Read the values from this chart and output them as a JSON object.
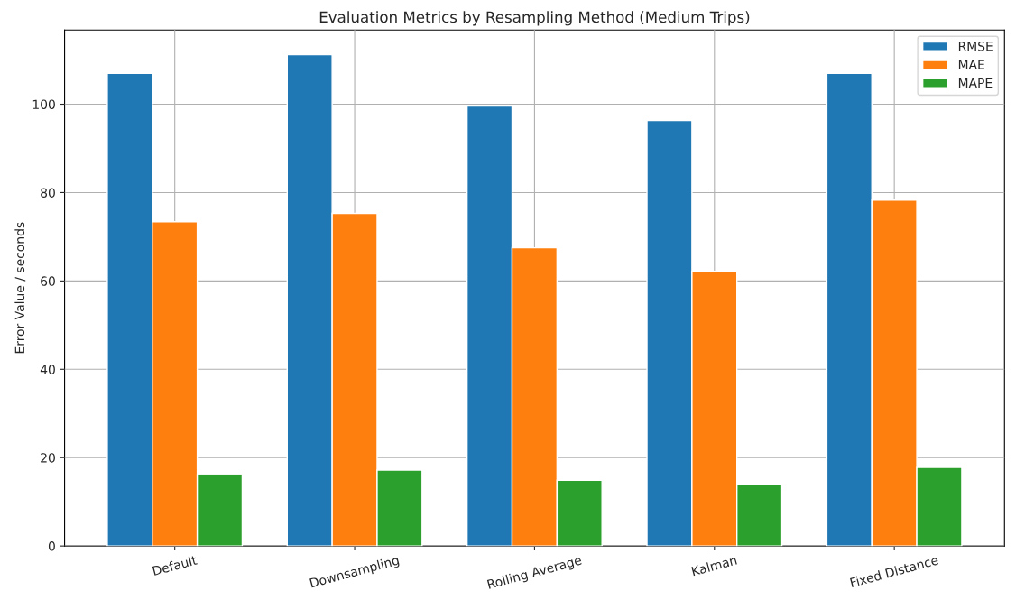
{
  "chart_data": {
    "type": "bar",
    "title": "Evaluation Metrics by Resampling Method (Medium Trips)",
    "ylabel": "Error Value / seconds",
    "categories": [
      "Default",
      "Downsampling",
      "Rolling Average",
      "Kalman",
      "Fixed Distance"
    ],
    "series": [
      {
        "name": "RMSE",
        "color": "#1f77b4",
        "values": [
          107.0,
          111.2,
          99.6,
          96.3,
          107.0
        ]
      },
      {
        "name": "MAE",
        "color": "#ff7f0e",
        "values": [
          73.4,
          75.3,
          67.5,
          62.2,
          78.3
        ]
      },
      {
        "name": "MAPE",
        "color": "#2ca02c",
        "values": [
          16.2,
          17.2,
          14.9,
          13.9,
          17.8
        ]
      }
    ],
    "ylim": [
      0,
      116.8
    ],
    "yticks": [
      0,
      20,
      40,
      60,
      80,
      100
    ],
    "grid": true,
    "legend": "top right"
  }
}
